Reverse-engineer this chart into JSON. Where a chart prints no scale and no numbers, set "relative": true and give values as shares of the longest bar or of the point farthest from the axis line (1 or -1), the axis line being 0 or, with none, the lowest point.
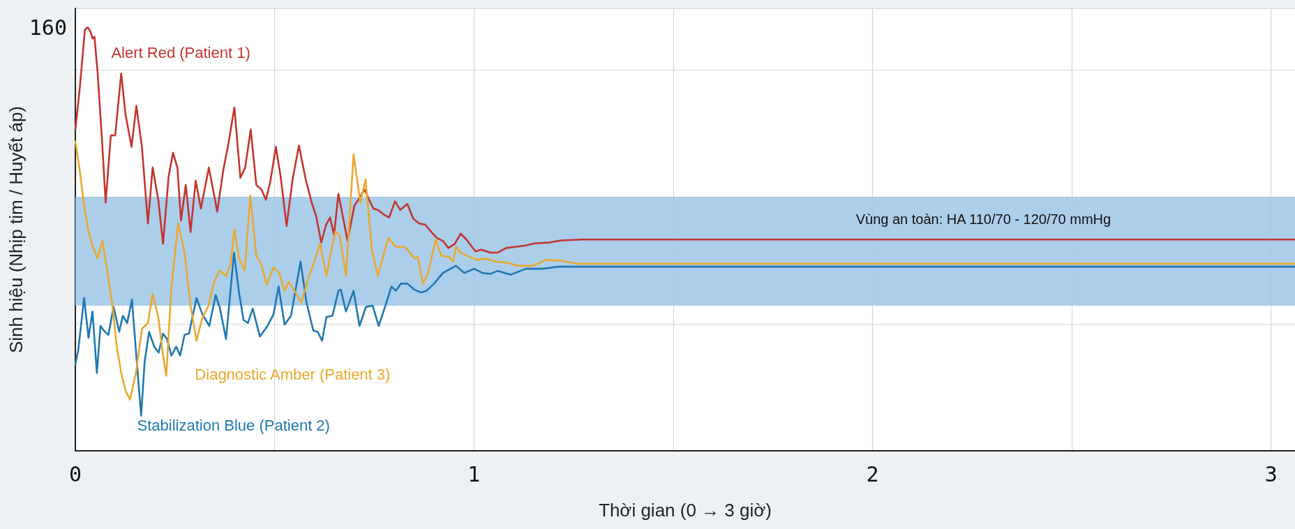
{
  "chart_data": {
    "type": "line",
    "relative": true,
    "xlabel": "Thời gian (0 → 3 giờ)",
    "ylabel": "Sinh hiệu (Nhịp tim / Huyết áp)",
    "xlim": [
      0,
      3.06
    ],
    "xticks": [
      0,
      {
        "value": 0.5,
        "label": null
      },
      1,
      {
        "value": 1.5,
        "label": null
      },
      2,
      {
        "value": 2.5,
        "label": null
      },
      3
    ],
    "grid": true,
    "legend": false,
    "marker": "none",
    "line_style": "solid",
    "annotations": [
      "160"
    ],
    "bands": [
      {
        "axis": "y",
        "from": 0.343,
        "to": 0.6,
        "label": "Vùng an toàn: HA 110/70 - 120/70 mmHg",
        "color": "#9cc6e8"
      }
    ],
    "series": [
      {
        "name": "Alert Red (Patient 1)",
        "color": "#c4342d",
        "x": [
          0,
          0.011,
          0.024,
          0.031,
          0.037,
          0.043,
          0.048,
          0.056,
          0.067,
          0.076,
          0.089,
          0.1,
          0.115,
          0.126,
          0.141,
          0.153,
          0.167,
          0.182,
          0.194,
          0.208,
          0.22,
          0.234,
          0.245,
          0.256,
          0.265,
          0.277,
          0.289,
          0.302,
          0.315,
          0.335,
          0.356,
          0.371,
          0.384,
          0.399,
          0.414,
          0.426,
          0.44,
          0.454,
          0.467,
          0.478,
          0.489,
          0.503,
          0.515,
          0.53,
          0.545,
          0.561,
          0.578,
          0.593,
          0.604,
          0.617,
          0.629,
          0.639,
          0.649,
          0.66,
          0.683,
          0.7,
          0.715,
          0.726,
          0.737,
          0.748,
          0.759,
          0.774,
          0.787,
          0.802,
          0.815,
          0.833,
          0.848,
          0.863,
          0.878,
          0.893,
          0.907,
          0.922,
          0.936,
          0.952,
          0.967,
          0.981,
          1.004,
          1.018,
          1.041,
          1.059,
          1.081,
          1.107,
          1.13,
          1.152,
          1.189,
          1.219,
          1.271,
          3.06
        ],
        "values": [
          0.759,
          0.856,
          0.995,
          1,
          0.992,
          0.974,
          0.978,
          0.891,
          0.732,
          0.586,
          0.745,
          0.745,
          0.891,
          0.794,
          0.718,
          0.815,
          0.718,
          0.537,
          0.669,
          0.593,
          0.489,
          0.648,
          0.704,
          0.669,
          0.544,
          0.628,
          0.517,
          0.638,
          0.572,
          0.669,
          0.565,
          0.662,
          0.725,
          0.811,
          0.645,
          0.669,
          0.759,
          0.628,
          0.617,
          0.593,
          0.635,
          0.718,
          0.648,
          0.531,
          0.641,
          0.721,
          0.641,
          0.586,
          0.555,
          0.492,
          0.534,
          0.551,
          0.51,
          0.607,
          0.496,
          0.579,
          0.6,
          0.617,
          0.593,
          0.572,
          0.569,
          0.558,
          0.551,
          0.589,
          0.569,
          0.583,
          0.548,
          0.537,
          0.534,
          0.517,
          0.503,
          0.496,
          0.479,
          0.489,
          0.513,
          0.499,
          0.471,
          0.475,
          0.468,
          0.468,
          0.479,
          0.482,
          0.485,
          0.49,
          0.492,
          0.497,
          0.499,
          0.499
        ]
      },
      {
        "name": "Stabilization Blue (Patient 2)",
        "color": "#1f78b0",
        "x": [
          0,
          0.007,
          0.022,
          0.033,
          0.043,
          0.054,
          0.063,
          0.074,
          0.083,
          0.096,
          0.11,
          0.119,
          0.13,
          0.142,
          0.154,
          0.165,
          0.174,
          0.185,
          0.198,
          0.209,
          0.22,
          0.23,
          0.241,
          0.253,
          0.263,
          0.274,
          0.285,
          0.304,
          0.319,
          0.336,
          0.352,
          0.363,
          0.378,
          0.398,
          0.411,
          0.422,
          0.433,
          0.445,
          0.463,
          0.482,
          0.497,
          0.51,
          0.525,
          0.541,
          0.565,
          0.58,
          0.597,
          0.608,
          0.619,
          0.63,
          0.645,
          0.66,
          0.666,
          0.679,
          0.698,
          0.713,
          0.729,
          0.746,
          0.761,
          0.778,
          0.793,
          0.804,
          0.817,
          0.833,
          0.85,
          0.867,
          0.881,
          0.9,
          0.922,
          0.941,
          0.955,
          0.976,
          1,
          1.022,
          1.041,
          1.06,
          1.092,
          1.13,
          1.174,
          1.212,
          1.248,
          3.06
        ],
        "values": [
          0.205,
          0.236,
          0.361,
          0.267,
          0.329,
          0.184,
          0.295,
          0.281,
          0.274,
          0.34,
          0.281,
          0.319,
          0.302,
          0.357,
          0.212,
          0.083,
          0.212,
          0.281,
          0.246,
          0.232,
          0.277,
          0.264,
          0.225,
          0.246,
          0.225,
          0.274,
          0.277,
          0.361,
          0.322,
          0.295,
          0.368,
          0.336,
          0.264,
          0.468,
          0.371,
          0.309,
          0.302,
          0.336,
          0.27,
          0.295,
          0.322,
          0.388,
          0.298,
          0.319,
          0.447,
          0.35,
          0.284,
          0.281,
          0.26,
          0.316,
          0.319,
          0.378,
          0.381,
          0.329,
          0.378,
          0.295,
          0.34,
          0.343,
          0.295,
          0.343,
          0.388,
          0.378,
          0.395,
          0.395,
          0.381,
          0.374,
          0.378,
          0.395,
          0.42,
          0.43,
          0.437,
          0.42,
          0.43,
          0.42,
          0.418,
          0.425,
          0.416,
          0.43,
          0.43,
          0.435,
          0.435,
          0.435
        ]
      },
      {
        "name": "Diagnostic Amber (Patient 3)",
        "color": "#eaa82e",
        "x": [
          0,
          0.011,
          0.022,
          0.033,
          0.044,
          0.056,
          0.068,
          0.08,
          0.093,
          0.104,
          0.115,
          0.126,
          0.137,
          0.152,
          0.167,
          0.182,
          0.194,
          0.208,
          0.219,
          0.228,
          0.241,
          0.258,
          0.274,
          0.289,
          0.304,
          0.319,
          0.334,
          0.348,
          0.362,
          0.378,
          0.389,
          0.399,
          0.411,
          0.425,
          0.439,
          0.454,
          0.467,
          0.48,
          0.497,
          0.512,
          0.525,
          0.535,
          0.55,
          0.567,
          0.582,
          0.597,
          0.614,
          0.63,
          0.641,
          0.652,
          0.663,
          0.679,
          0.698,
          0.715,
          0.728,
          0.744,
          0.759,
          0.785,
          0.804,
          0.826,
          0.852,
          0.859,
          0.872,
          0.885,
          0.904,
          0.918,
          0.937,
          0.948,
          0.955,
          0.967,
          0.989,
          1.007,
          1.029,
          1.055,
          1.085,
          1.111,
          1.148,
          1.181,
          1.219,
          1.256,
          3.06
        ],
        "values": [
          0.731,
          0.662,
          0.579,
          0.517,
          0.482,
          0.454,
          0.496,
          0.426,
          0.343,
          0.246,
          0.184,
          0.142,
          0.121,
          0.184,
          0.288,
          0.302,
          0.371,
          0.316,
          0.232,
          0.177,
          0.385,
          0.537,
          0.468,
          0.343,
          0.26,
          0.316,
          0.343,
          0.399,
          0.426,
          0.413,
          0.44,
          0.523,
          0.454,
          0.426,
          0.603,
          0.461,
          0.44,
          0.392,
          0.433,
          0.42,
          0.378,
          0.399,
          0.378,
          0.35,
          0.399,
          0.44,
          0.489,
          0.413,
          0.468,
          0.517,
          0.51,
          0.413,
          0.7,
          0.586,
          0.641,
          0.475,
          0.413,
          0.503,
          0.482,
          0.482,
          0.454,
          0.458,
          0.395,
          0.42,
          0.499,
          0.461,
          0.458,
          0.447,
          0.482,
          0.468,
          0.458,
          0.451,
          0.454,
          0.447,
          0.444,
          0.437,
          0.437,
          0.451,
          0.449,
          0.442,
          0.442
        ]
      }
    ]
  }
}
